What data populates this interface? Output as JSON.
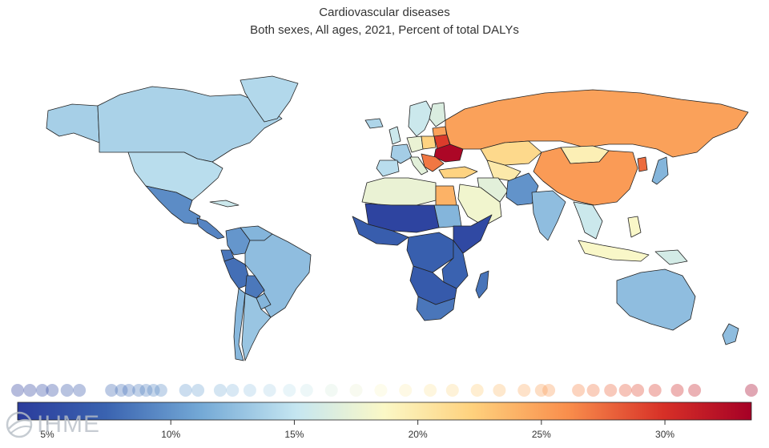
{
  "title": "Cardiovascular diseases",
  "subtitle": "Both sexes, All ages, 2021, Percent of total DALYs",
  "colors": {
    "low": "#2b3c9c",
    "mid": "#fbf8c6",
    "high": "#a50026",
    "ocean": "#ffffff",
    "border": "#222222"
  },
  "legend": {
    "min": 3.8,
    "max": 33.5,
    "ticks": [
      {
        "value": 5,
        "label": "5%"
      },
      {
        "value": 10,
        "label": "10%"
      },
      {
        "value": 15,
        "label": "15%"
      },
      {
        "value": 20,
        "label": "20%"
      },
      {
        "value": 25,
        "label": "25%"
      },
      {
        "value": 30,
        "label": "30%"
      }
    ],
    "dot_values": [
      3.8,
      4.3,
      4.8,
      5.2,
      5.8,
      6.3,
      7.6,
      8.0,
      8.3,
      8.7,
      9.0,
      9.3,
      9.6,
      10.6,
      11.1,
      12.0,
      12.5,
      13.2,
      14.0,
      14.8,
      15.5,
      16.5,
      17.5,
      18.5,
      19.5,
      20.5,
      21.4,
      22.4,
      23.3,
      24.3,
      25.0,
      25.3,
      26.5,
      27.1,
      27.8,
      28.4,
      28.9,
      29.6,
      30.5,
      31.2,
      33.5
    ]
  },
  "logo": {
    "text": "IHME"
  },
  "map_regions": [
    {
      "name": "Canada",
      "value": 13.8
    },
    {
      "name": "Alaska",
      "value": 13.6
    },
    {
      "name": "Greenland",
      "value": 14.2
    },
    {
      "name": "United States",
      "value": 14.5
    },
    {
      "name": "Mexico",
      "value": 9.6
    },
    {
      "name": "Central America",
      "value": 9.2
    },
    {
      "name": "Cuba",
      "value": 15.5
    },
    {
      "name": "Colombia",
      "value": 10.2
    },
    {
      "name": "Venezuela",
      "value": 12.0
    },
    {
      "name": "Ecuador",
      "value": 8.4
    },
    {
      "name": "Peru",
      "value": 8.0
    },
    {
      "name": "Brazil",
      "value": 12.5
    },
    {
      "name": "Bolivia",
      "value": 8.5
    },
    {
      "name": "Paraguay",
      "value": 12.0
    },
    {
      "name": "Argentina",
      "value": 13.0
    },
    {
      "name": "Chile",
      "value": 12.2
    },
    {
      "name": "Iceland",
      "value": 14.0
    },
    {
      "name": "United Kingdom",
      "value": 15.5
    },
    {
      "name": "France",
      "value": 13.5
    },
    {
      "name": "Iberia",
      "value": 14.5
    },
    {
      "name": "Scandinavia",
      "value": 15.5
    },
    {
      "name": "Finland",
      "value": 16.5
    },
    {
      "name": "Baltics",
      "value": 25.0
    },
    {
      "name": "Poland",
      "value": 22.0
    },
    {
      "name": "Germany",
      "value": 17.5
    },
    {
      "name": "Italy",
      "value": 17.0
    },
    {
      "name": "Belarus",
      "value": 29.5
    },
    {
      "name": "Ukraine",
      "value": 33.0
    },
    {
      "name": "Balkans",
      "value": 27.0
    },
    {
      "name": "Turkey",
      "value": 22.0
    },
    {
      "name": "Russia",
      "value": 25.0
    },
    {
      "name": "Kazakhstan",
      "value": 21.5
    },
    {
      "name": "Mongolia",
      "value": 19.5
    },
    {
      "name": "China",
      "value": 25.3
    },
    {
      "name": "North Korea",
      "value": 27.5
    },
    {
      "name": "Japan",
      "value": 12.0
    },
    {
      "name": "Central Asia",
      "value": 20.0
    },
    {
      "name": "Iran",
      "value": 17.0
    },
    {
      "name": "Afghanistan Pakistan",
      "value": 10.0
    },
    {
      "name": "India",
      "value": 12.5
    },
    {
      "name": "Southeast Asia",
      "value": 15.5
    },
    {
      "name": "Indonesia",
      "value": 18.5
    },
    {
      "name": "Philippines",
      "value": 18.5
    },
    {
      "name": "Papua New Guinea",
      "value": 16.0
    },
    {
      "name": "Australia",
      "value": 12.5
    },
    {
      "name": "New Zealand",
      "value": 12.5
    },
    {
      "name": "North Africa",
      "value": 17.5
    },
    {
      "name": "Egypt",
      "value": 24.0
    },
    {
      "name": "Arabia",
      "value": 18.0
    },
    {
      "name": "Sudan",
      "value": 12.0
    },
    {
      "name": "Sahel",
      "value": 4.5
    },
    {
      "name": "West Africa",
      "value": 6.8
    },
    {
      "name": "Horn of Africa",
      "value": 5.0
    },
    {
      "name": "Central Africa",
      "value": 7.0
    },
    {
      "name": "East Africa",
      "value": 7.3
    },
    {
      "name": "Southern Africa",
      "value": 6.5
    },
    {
      "name": "South Africa",
      "value": 8.4
    },
    {
      "name": "Madagascar",
      "value": 8.3
    }
  ]
}
